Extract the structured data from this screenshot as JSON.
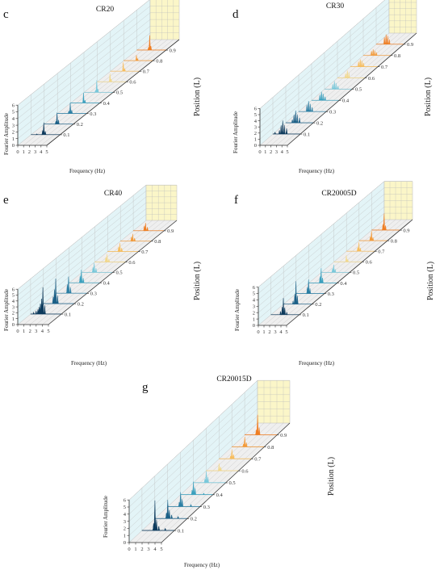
{
  "chart_data": [
    {
      "type": "area",
      "panel_letter": "c",
      "title": "CR20",
      "xlabel": "Frequency (Hz)",
      "ylabel": "Fourier Amplitude",
      "zlabel": "Position (L)",
      "x_ticks": [
        "0",
        "1",
        "2",
        "3",
        "4",
        "5"
      ],
      "y_ticks": [
        "0",
        "1",
        "2",
        "3",
        "4",
        "5",
        "6"
      ],
      "z_ticks": [
        "0.1",
        "0.2",
        "0.3",
        "0.4",
        "0.5",
        "0.6",
        "0.7",
        "0.8",
        "0.9"
      ],
      "xlim": [
        0,
        5
      ],
      "ylim": [
        0,
        6
      ],
      "series": [
        {
          "position": 0.1,
          "color": "#0d3a5c",
          "peaks": [
            [
              2.2,
              1.8
            ],
            [
              2.0,
              0.6
            ],
            [
              2.45,
              0.5
            ],
            [
              1.0,
              0.1
            ]
          ]
        },
        {
          "position": 0.2,
          "color": "#1b5f86",
          "peaks": [
            [
              2.2,
              1.7
            ],
            [
              2.45,
              0.6
            ],
            [
              2.0,
              0.4
            ]
          ]
        },
        {
          "position": 0.3,
          "color": "#2a7ea3",
          "peaks": [
            [
              2.2,
              1.6
            ],
            [
              2.45,
              0.5
            ],
            [
              1.95,
              0.4
            ]
          ]
        },
        {
          "position": 0.4,
          "color": "#3aa0be",
          "peaks": [
            [
              2.2,
              1.5
            ],
            [
              2.45,
              0.4
            ]
          ]
        },
        {
          "position": 0.5,
          "color": "#79c8da",
          "peaks": [
            [
              2.2,
              1.8
            ],
            [
              2.4,
              0.5
            ],
            [
              2.0,
              0.3
            ]
          ]
        },
        {
          "position": 0.6,
          "color": "#f2d88a",
          "peaks": [
            [
              2.2,
              1.2
            ],
            [
              2.4,
              0.4
            ]
          ]
        },
        {
          "position": 0.7,
          "color": "#f7bd5c",
          "peaks": [
            [
              2.2,
              1.3
            ],
            [
              2.45,
              0.4
            ]
          ]
        },
        {
          "position": 0.8,
          "color": "#f39a3a",
          "peaks": [
            [
              2.2,
              0.8
            ],
            [
              2.4,
              0.3
            ]
          ]
        },
        {
          "position": 0.9,
          "color": "#ef7d22",
          "peaks": [
            [
              2.2,
              2.2
            ],
            [
              2.4,
              0.6
            ],
            [
              2.0,
              0.4
            ]
          ]
        }
      ]
    },
    {
      "type": "area",
      "panel_letter": "d",
      "title": "CR30",
      "xlabel": "Frequency (Hz)",
      "ylabel": "Fourier Amplitude",
      "zlabel": "Position (L)",
      "x_ticks": [
        "0",
        "1",
        "2",
        "3",
        "4",
        "5"
      ],
      "y_ticks": [
        "0",
        "1",
        "2",
        "3",
        "4",
        "5",
        "6"
      ],
      "z_ticks": [
        "0.1",
        "0.2",
        "0.3",
        "0.4",
        "0.5",
        "0.6",
        "0.7",
        "0.8",
        "0.9"
      ],
      "xlim": [
        0,
        5
      ],
      "ylim": [
        0,
        6
      ],
      "series": [
        {
          "position": 0.1,
          "color": "#0d3a5c",
          "peaks": [
            [
              1.8,
              2.2
            ],
            [
              1.5,
              1.4
            ],
            [
              2.1,
              1.5
            ],
            [
              2.5,
              0.9
            ],
            [
              1.2,
              0.6
            ],
            [
              0.4,
              0.3
            ]
          ]
        },
        {
          "position": 0.2,
          "color": "#1b5f86",
          "peaks": [
            [
              1.8,
              2.0
            ],
            [
              1.5,
              1.3
            ],
            [
              2.1,
              1.4
            ],
            [
              2.5,
              0.8
            ],
            [
              1.2,
              0.5
            ]
          ]
        },
        {
          "position": 0.3,
          "color": "#2a7ea3",
          "peaks": [
            [
              1.8,
              1.7
            ],
            [
              1.5,
              1.1
            ],
            [
              2.1,
              1.3
            ],
            [
              2.45,
              0.7
            ]
          ]
        },
        {
          "position": 0.4,
          "color": "#3aa0be",
          "peaks": [
            [
              1.8,
              1.4
            ],
            [
              1.5,
              0.9
            ],
            [
              2.1,
              1.1
            ],
            [
              2.45,
              0.6
            ]
          ]
        },
        {
          "position": 0.5,
          "color": "#79c8da",
          "peaks": [
            [
              1.8,
              1.3
            ],
            [
              1.5,
              0.8
            ],
            [
              2.1,
              1.0
            ],
            [
              2.45,
              0.5
            ]
          ]
        },
        {
          "position": 0.6,
          "color": "#f2d88a",
          "peaks": [
            [
              1.8,
              1.2
            ],
            [
              1.5,
              0.7
            ],
            [
              2.1,
              0.9
            ]
          ]
        },
        {
          "position": 0.7,
          "color": "#f7bd5c",
          "peaks": [
            [
              1.8,
              1.2
            ],
            [
              1.5,
              0.8
            ],
            [
              2.1,
              1.0
            ],
            [
              2.4,
              0.6
            ]
          ]
        },
        {
          "position": 0.8,
          "color": "#f39a3a",
          "peaks": [
            [
              1.8,
              1.0
            ],
            [
              1.5,
              0.7
            ],
            [
              2.1,
              0.8
            ],
            [
              2.4,
              0.5
            ]
          ]
        },
        {
          "position": 0.9,
          "color": "#ef7d22",
          "peaks": [
            [
              1.8,
              1.6
            ],
            [
              1.5,
              1.1
            ],
            [
              2.1,
              1.4
            ],
            [
              2.4,
              0.8
            ]
          ]
        }
      ]
    },
    {
      "type": "area",
      "panel_letter": "e",
      "title": "CR40",
      "xlabel": "Frequency (Hz)",
      "ylabel": "Fourier Amplitude",
      "zlabel": "Position (L)",
      "x_ticks": [
        "0",
        "1",
        "2",
        "3",
        "4",
        "5"
      ],
      "y_ticks": [
        "0",
        "1",
        "2",
        "3",
        "4",
        "5",
        "6"
      ],
      "z_ticks": [
        "0.1",
        "0.2",
        "0.3",
        "0.4",
        "0.5",
        "0.6",
        "0.7",
        "0.8",
        "0.9"
      ],
      "xlim": [
        0,
        5
      ],
      "ylim": [
        0,
        6
      ],
      "series": [
        {
          "position": 0.1,
          "color": "#0d3a5c",
          "peaks": [
            [
              2.0,
              4.5
            ],
            [
              1.8,
              2.6
            ],
            [
              1.6,
              1.8
            ],
            [
              1.4,
              1.2
            ],
            [
              2.3,
              1.5
            ],
            [
              1.2,
              0.8
            ],
            [
              0.9,
              0.5
            ],
            [
              0.5,
              0.3
            ]
          ]
        },
        {
          "position": 0.2,
          "color": "#1b5f86",
          "peaks": [
            [
              2.0,
              4.2
            ],
            [
              1.8,
              2.4
            ],
            [
              2.3,
              1.4
            ],
            [
              1.6,
              1.2
            ]
          ]
        },
        {
          "position": 0.3,
          "color": "#2a7ea3",
          "peaks": [
            [
              2.0,
              2.8
            ],
            [
              1.8,
              1.5
            ],
            [
              2.3,
              1.0
            ]
          ]
        },
        {
          "position": 0.4,
          "color": "#3aa0be",
          "peaks": [
            [
              2.0,
              2.2
            ],
            [
              1.8,
              1.2
            ],
            [
              2.3,
              0.8
            ]
          ]
        },
        {
          "position": 0.5,
          "color": "#79c8da",
          "peaks": [
            [
              2.0,
              1.6
            ],
            [
              1.8,
              0.9
            ],
            [
              2.3,
              0.7
            ]
          ]
        },
        {
          "position": 0.6,
          "color": "#f2d88a",
          "peaks": [
            [
              2.0,
              1.3
            ],
            [
              1.8,
              0.8
            ],
            [
              2.3,
              0.5
            ]
          ]
        },
        {
          "position": 0.7,
          "color": "#f7bd5c",
          "peaks": [
            [
              2.0,
              1.4
            ],
            [
              1.8,
              0.8
            ],
            [
              2.3,
              0.6
            ]
          ]
        },
        {
          "position": 0.8,
          "color": "#f39a3a",
          "peaks": [
            [
              2.0,
              1.2
            ],
            [
              1.8,
              0.7
            ],
            [
              2.3,
              0.5
            ]
          ]
        },
        {
          "position": 0.9,
          "color": "#ef7d22",
          "peaks": [
            [
              2.0,
              1.3
            ],
            [
              1.8,
              0.8
            ],
            [
              2.3,
              0.6
            ]
          ]
        }
      ]
    },
    {
      "type": "area",
      "panel_letter": "f",
      "title": "CR20005D",
      "xlabel": "Frequency (Hz)",
      "ylabel": "Fourier Amplitude",
      "zlabel": "Position (L)",
      "x_ticks": [
        "0",
        "1",
        "2",
        "3",
        "4",
        "5"
      ],
      "y_ticks": [
        "0",
        "1",
        "2",
        "3",
        "4",
        "5",
        "6"
      ],
      "z_ticks": [
        "0.1",
        "0.2",
        "0.3",
        "0.4",
        "0.5",
        "0.6",
        "0.7",
        "0.8",
        "0.9"
      ],
      "xlim": [
        0,
        5
      ],
      "ylim": [
        0,
        6
      ],
      "series": [
        {
          "position": 0.1,
          "color": "#0d3a5c",
          "peaks": [
            [
              2.2,
              2.6
            ],
            [
              2.0,
              1.2
            ],
            [
              2.45,
              1.1
            ],
            [
              1.7,
              0.5
            ],
            [
              2.8,
              0.4
            ]
          ]
        },
        {
          "position": 0.2,
          "color": "#1b5f86",
          "peaks": [
            [
              2.2,
              3.6
            ],
            [
              2.0,
              1.6
            ],
            [
              2.45,
              1.3
            ],
            [
              1.7,
              0.5
            ]
          ]
        },
        {
          "position": 0.3,
          "color": "#2a7ea3",
          "peaks": [
            [
              2.2,
              2.2
            ],
            [
              2.0,
              1.0
            ],
            [
              2.45,
              0.8
            ]
          ]
        },
        {
          "position": 0.4,
          "color": "#3aa0be",
          "peaks": [
            [
              2.2,
              2.3
            ],
            [
              2.0,
              1.0
            ],
            [
              2.45,
              0.8
            ]
          ]
        },
        {
          "position": 0.5,
          "color": "#79c8da",
          "peaks": [
            [
              2.2,
              1.2
            ],
            [
              2.0,
              0.6
            ],
            [
              2.45,
              0.5
            ]
          ]
        },
        {
          "position": 0.6,
          "color": "#f2d88a",
          "peaks": [
            [
              2.2,
              1.0
            ],
            [
              2.45,
              0.4
            ]
          ]
        },
        {
          "position": 0.7,
          "color": "#f7bd5c",
          "peaks": [
            [
              2.2,
              1.4
            ],
            [
              2.0,
              0.6
            ],
            [
              2.45,
              0.5
            ]
          ]
        },
        {
          "position": 0.8,
          "color": "#f39a3a",
          "peaks": [
            [
              2.2,
              1.5
            ],
            [
              2.0,
              0.6
            ],
            [
              2.45,
              0.5
            ]
          ]
        },
        {
          "position": 0.9,
          "color": "#ef7d22",
          "peaks": [
            [
              2.2,
              2.6
            ],
            [
              2.0,
              0.9
            ],
            [
              2.45,
              0.7
            ]
          ]
        }
      ]
    },
    {
      "type": "area",
      "panel_letter": "g",
      "title": "CR20015D",
      "xlabel": "Frequency (Hz)",
      "ylabel": "Fourier Amplitude",
      "zlabel": "Position (L)",
      "x_ticks": [
        "0",
        "1",
        "2",
        "3",
        "4",
        "5"
      ],
      "y_ticks": [
        "0",
        "1",
        "2",
        "3",
        "4",
        "5",
        "6"
      ],
      "z_ticks": [
        "0.1",
        "0.2",
        "0.3",
        "0.4",
        "0.5",
        "0.6",
        "0.7",
        "0.8",
        "0.9"
      ],
      "xlim": [
        0,
        5
      ],
      "ylim": [
        0,
        6
      ],
      "series": [
        {
          "position": 0.1,
          "color": "#0d3a5c",
          "peaks": [
            [
              2.0,
              4.2
            ],
            [
              2.25,
              1.5
            ],
            [
              1.8,
              1.0
            ],
            [
              2.6,
              0.6
            ],
            [
              3.6,
              0.3
            ]
          ]
        },
        {
          "position": 0.2,
          "color": "#1b5f86",
          "peaks": [
            [
              2.0,
              2.6
            ],
            [
              2.25,
              1.2
            ],
            [
              1.8,
              0.8
            ],
            [
              2.6,
              0.5
            ],
            [
              3.6,
              0.3
            ]
          ]
        },
        {
          "position": 0.3,
          "color": "#2a7ea3",
          "peaks": [
            [
              2.0,
              2.0
            ],
            [
              2.25,
              1.0
            ],
            [
              1.8,
              0.6
            ],
            [
              3.6,
              0.3
            ]
          ]
        },
        {
          "position": 0.4,
          "color": "#3aa0be",
          "peaks": [
            [
              2.0,
              1.8
            ],
            [
              2.25,
              0.9
            ],
            [
              1.8,
              0.6
            ],
            [
              3.6,
              0.2
            ]
          ]
        },
        {
          "position": 0.5,
          "color": "#79c8da",
          "peaks": [
            [
              2.0,
              1.6
            ],
            [
              2.25,
              0.8
            ],
            [
              1.8,
              0.5
            ]
          ]
        },
        {
          "position": 0.6,
          "color": "#f2d88a",
          "peaks": [
            [
              2.0,
              1.0
            ],
            [
              2.25,
              0.5
            ]
          ]
        },
        {
          "position": 0.7,
          "color": "#f7bd5c",
          "peaks": [
            [
              2.0,
              1.3
            ],
            [
              2.25,
              0.6
            ],
            [
              1.8,
              0.4
            ]
          ]
        },
        {
          "position": 0.8,
          "color": "#f39a3a",
          "peaks": [
            [
              2.0,
              1.4
            ],
            [
              2.25,
              0.6
            ],
            [
              1.8,
              0.4
            ]
          ]
        },
        {
          "position": 0.9,
          "color": "#ef7d22",
          "peaks": [
            [
              2.0,
              2.8
            ],
            [
              2.25,
              1.0
            ],
            [
              1.8,
              0.7
            ]
          ]
        }
      ]
    }
  ],
  "style": {
    "back_wall_color": "#fbf6c8",
    "left_wall_color": "#e3f4f7",
    "floor_color": "#efefef",
    "grid_color": "#bcbcbc",
    "axis_color": "#333333"
  }
}
